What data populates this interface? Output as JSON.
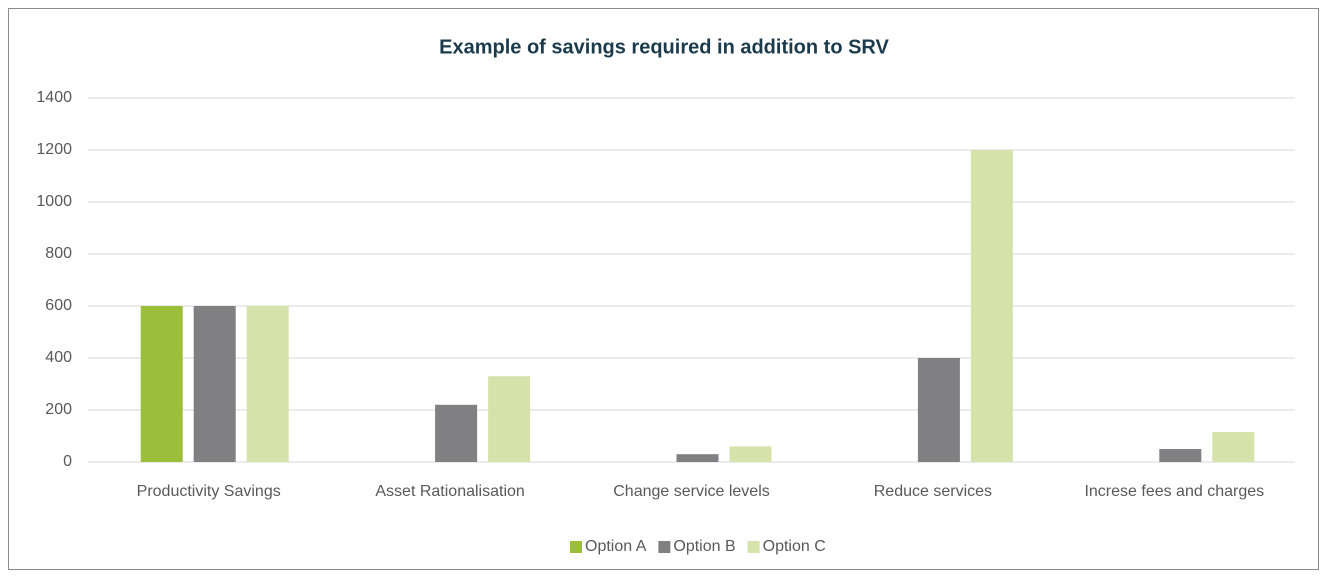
{
  "chart_data": {
    "type": "bar",
    "title": "Example of savings required in addition to SRV",
    "categories": [
      "Productivity Savings",
      "Asset Rationalisation",
      "Change service levels",
      "Reduce services",
      "Increse fees and charges"
    ],
    "series": [
      {
        "name": "Option A",
        "color": "#9bbf3a",
        "values": [
          600,
          0,
          0,
          0,
          0
        ]
      },
      {
        "name": "Option B",
        "color": "#808082",
        "values": [
          600,
          220,
          30,
          400,
          50
        ]
      },
      {
        "name": "Option C",
        "color": "#d5e3ab",
        "values": [
          600,
          330,
          60,
          1200,
          115
        ]
      }
    ],
    "ylim": [
      0,
      1400
    ],
    "yticks": [
      0,
      200,
      400,
      600,
      800,
      1000,
      1200,
      1400
    ],
    "grid": true,
    "legend": "bottom"
  }
}
